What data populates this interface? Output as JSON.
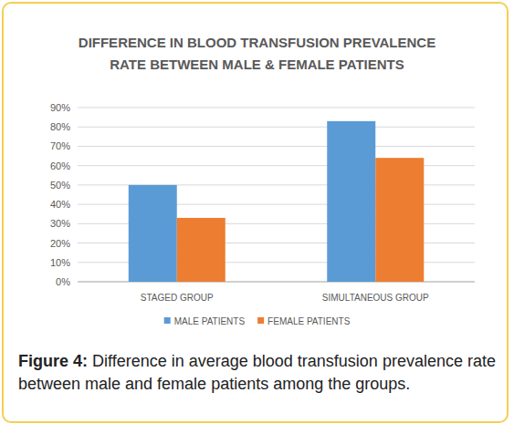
{
  "chart_data": {
    "type": "bar",
    "title": "DIFFERENCE IN BLOOD TRANSFUSION PREVALENCE RATE BETWEEN MALE & FEMALE PATIENTS",
    "categories": [
      "STAGED GROUP",
      "SIMULTANEOUS GROUP"
    ],
    "series": [
      {
        "name": "MALE PATIENTS",
        "color": "#5b9bd5",
        "values": [
          50,
          83
        ]
      },
      {
        "name": "FEMALE PATIENTS",
        "color": "#ed7d31",
        "values": [
          33,
          64
        ]
      }
    ],
    "ylim": [
      0,
      90
    ],
    "yticks": [
      {
        "value": 0,
        "label": "0%"
      },
      {
        "value": 10,
        "label": "10%"
      },
      {
        "value": 20,
        "label": "20%"
      },
      {
        "value": 30,
        "label": "30%"
      },
      {
        "value": 40,
        "label": "40%"
      },
      {
        "value": 50,
        "label": "50%"
      },
      {
        "value": 60,
        "label": "60%"
      },
      {
        "value": 70,
        "label": "70%"
      },
      {
        "value": 80,
        "label": "80%"
      },
      {
        "value": 90,
        "label": "90%"
      }
    ],
    "grid": true,
    "legend": "bottom"
  },
  "caption": {
    "label": "Figure 4:",
    "text": "Difference in average blood transfusion prevalence rate between male and female patients among the groups."
  }
}
